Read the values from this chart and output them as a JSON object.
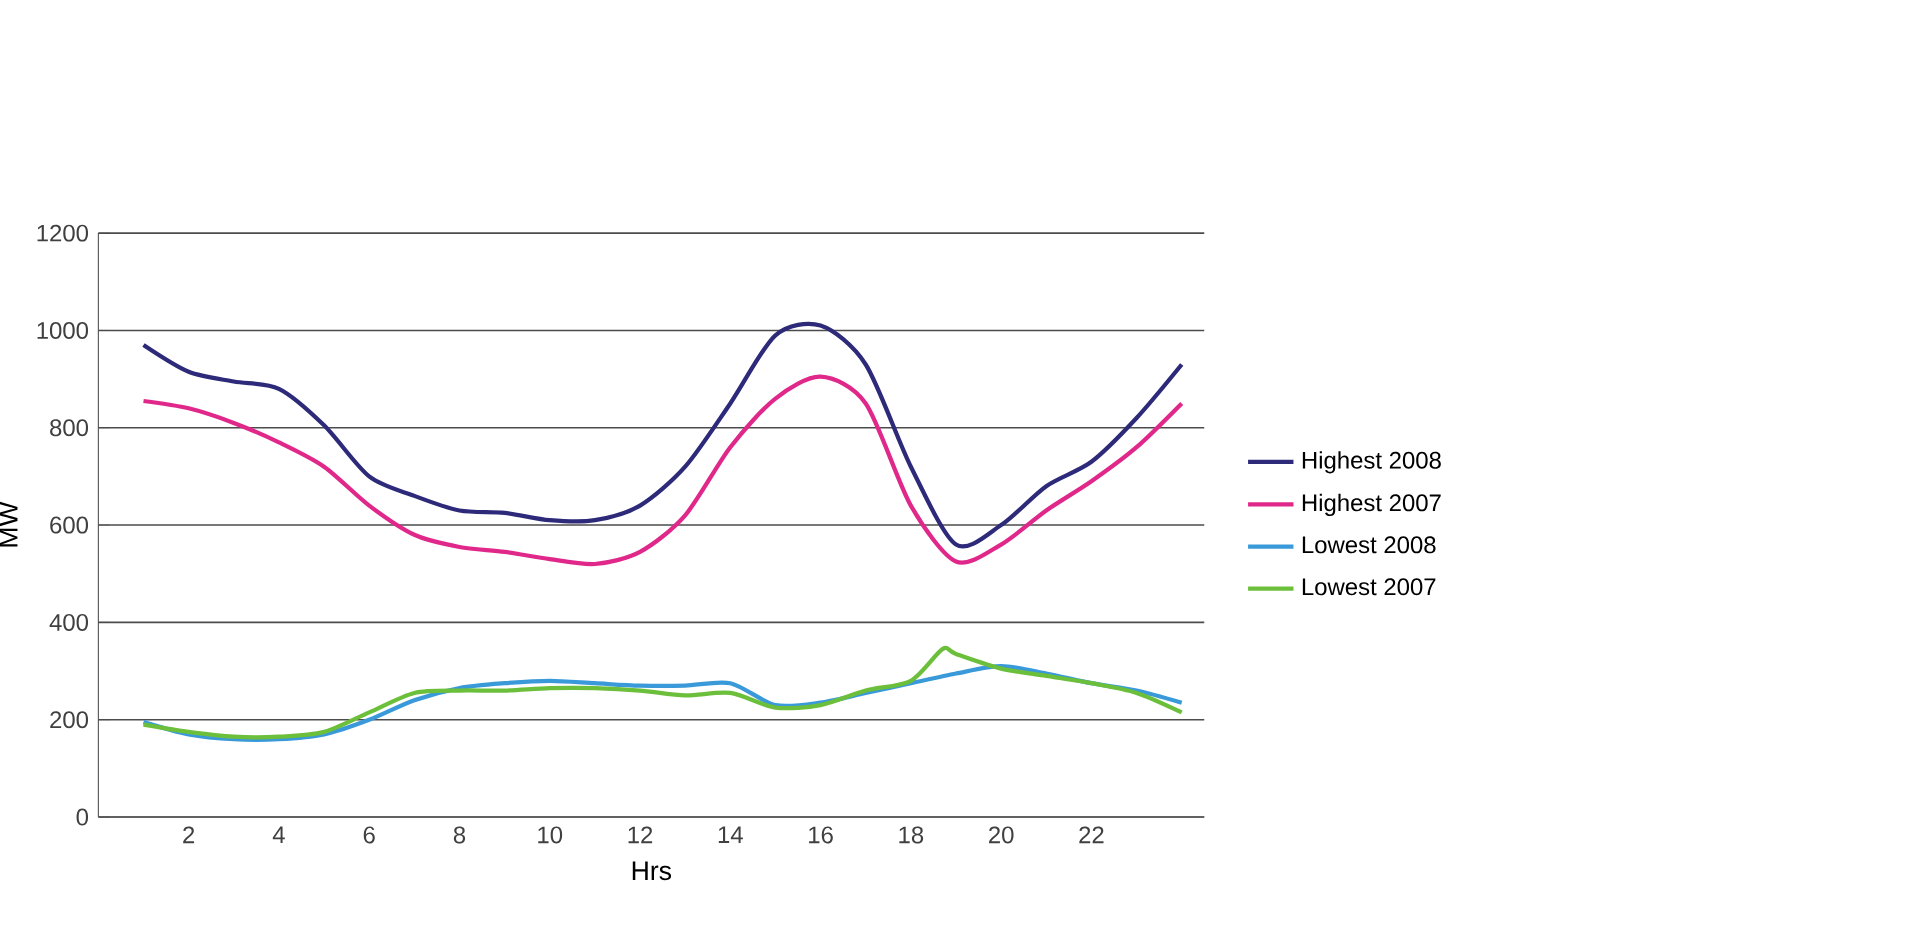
{
  "chart_data": {
    "type": "line",
    "xlabel": "Hrs",
    "ylabel": "MW",
    "xlim": [
      0,
      24.5
    ],
    "ylim": [
      0,
      1200
    ],
    "xticks": [
      2,
      4,
      6,
      8,
      10,
      12,
      14,
      16,
      18,
      20,
      22
    ],
    "yticks": [
      0,
      200,
      400,
      600,
      800,
      1000,
      1200
    ],
    "grid": "y",
    "legend": "right",
    "marker": "none",
    "line_style": "solid",
    "x": [
      1,
      2,
      3,
      4,
      5,
      6,
      7,
      8,
      9,
      10,
      11,
      12,
      13,
      14,
      15,
      16,
      17,
      18,
      19,
      20,
      21,
      22,
      23,
      24
    ],
    "series": [
      {
        "name": "Highest 2008",
        "color": "#2e2a7a",
        "values": [
          970,
          915,
          895,
          880,
          805,
          700,
          660,
          630,
          625,
          610,
          610,
          640,
          720,
          850,
          990,
          1010,
          930,
          720,
          560,
          600,
          680,
          730,
          820,
          930
        ]
      },
      {
        "name": "Highest 2007",
        "color": "#e0288a",
        "values": [
          855,
          840,
          810,
          770,
          720,
          640,
          580,
          555,
          545,
          530,
          520,
          545,
          620,
          760,
          860,
          905,
          850,
          640,
          525,
          560,
          630,
          690,
          760,
          850
        ]
      },
      {
        "name": "Lowest 2008",
        "color": "#3a9ad9",
        "values": [
          195,
          170,
          160,
          160,
          170,
          200,
          240,
          265,
          275,
          280,
          275,
          270,
          270,
          275,
          230,
          235,
          255,
          275,
          295,
          310,
          295,
          275,
          260,
          235
        ]
      },
      {
        "name": "Lowest 2007",
        "color": "#6cbf3a",
        "x": [
          1,
          2,
          3,
          4,
          5,
          6,
          7,
          8,
          9,
          10,
          11,
          12,
          13,
          14,
          15,
          16,
          17,
          18,
          18.7,
          19,
          20,
          21,
          22,
          23,
          24
        ],
        "values": [
          190,
          175,
          165,
          165,
          175,
          215,
          255,
          260,
          260,
          265,
          265,
          260,
          250,
          255,
          225,
          230,
          260,
          280,
          345,
          335,
          305,
          290,
          275,
          255,
          215
        ]
      }
    ]
  }
}
